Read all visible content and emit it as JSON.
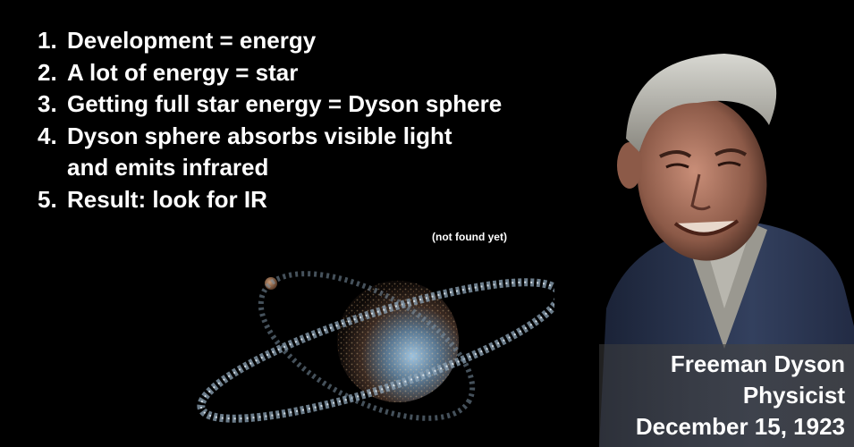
{
  "points": [
    {
      "number": "1.",
      "text": "Development = energy"
    },
    {
      "number": "2.",
      "text": "A lot of energy = star"
    },
    {
      "number": "3.",
      "text": "Getting full star energy = Dyson sphere"
    },
    {
      "number": "4.",
      "text": "Dyson sphere absorbs visible light",
      "continuation": "and emits infrared"
    },
    {
      "number": "5.",
      "text": "Result: look for IR"
    }
  ],
  "note": "(not found yet)",
  "caption": {
    "name": "Freeman Dyson",
    "title": "Physicist",
    "date": "December 15, 1923"
  },
  "colors": {
    "background": "#000000",
    "text": "#ffffff",
    "jacket": "#2a3550",
    "caption_band": "#4a4a4a"
  },
  "images": {
    "space_art": "dyson-sphere-megastructure-illustration",
    "portrait": "freeman-dyson-photo"
  }
}
